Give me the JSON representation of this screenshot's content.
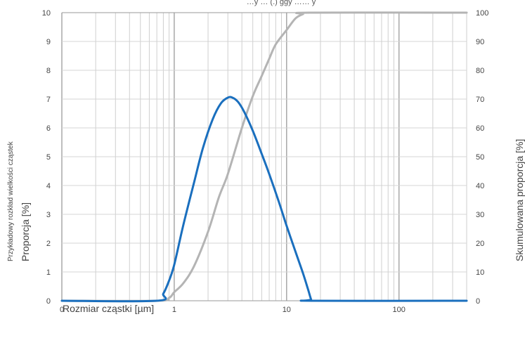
{
  "chart_data": {
    "type": "line",
    "title_fragment": "…y … (.) ggy …… y",
    "xlabel": "Rozmiar cząstki [µm]",
    "ylabel_left_main": "Proporcja [%]",
    "ylabel_left_sub": "Przykładowy rozkład wielkości cząstek",
    "ylabel_right": "Skumulowana proporcja  [%]",
    "x_scale": "log",
    "xlim": [
      0.1,
      400
    ],
    "x_tick_labels": [
      "0",
      "1",
      "10",
      "100"
    ],
    "ylim_left": [
      0,
      10
    ],
    "ylim_right": [
      0,
      100
    ],
    "y_tick_labels_left": [
      "0",
      "1",
      "2",
      "3",
      "4",
      "5",
      "6",
      "7",
      "8",
      "9",
      "10"
    ],
    "y_tick_labels_right": [
      "0",
      "10",
      "20",
      "30",
      "40",
      "50",
      "60",
      "70",
      "80",
      "90",
      "100"
    ],
    "grid": true,
    "series": [
      {
        "axis": "left",
        "color": "#1a6fbe",
        "x": [
          0.1,
          0.7,
          0.8,
          0.9,
          1.0,
          1.2,
          1.5,
          1.8,
          2.2,
          2.6,
          3.0,
          3.3,
          3.7,
          4.2,
          5.0,
          6.0,
          7.0,
          8.5,
          10.0,
          12.0,
          14.0,
          15.5,
          16.5,
          17.0,
          400
        ],
        "y": [
          0,
          0,
          0.25,
          0.7,
          1.25,
          2.6,
          4.1,
          5.3,
          6.3,
          6.85,
          7.05,
          7.05,
          6.9,
          6.55,
          5.9,
          5.1,
          4.4,
          3.45,
          2.6,
          1.7,
          0.95,
          0.4,
          0.05,
          0,
          0
        ]
      },
      {
        "axis": "right",
        "color": "#b4b4b4",
        "x": [
          0.1,
          0.7,
          0.9,
          1.0,
          1.2,
          1.5,
          2.0,
          2.5,
          3.0,
          4.0,
          5.0,
          6.0,
          7.0,
          8.0,
          10.0,
          12.0,
          14.0,
          16.0,
          400
        ],
        "y": [
          0,
          0,
          1,
          3,
          6,
          12,
          24,
          36,
          44,
          60,
          71,
          78,
          84,
          89,
          94,
          98,
          99.5,
          100,
          100
        ]
      }
    ]
  }
}
